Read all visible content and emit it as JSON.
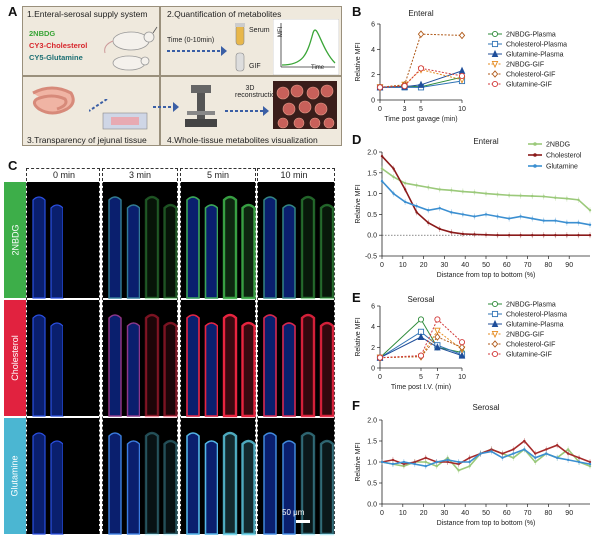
{
  "panels": {
    "A": "A",
    "B": "B",
    "C": "C",
    "D": "D",
    "E": "E",
    "F": "F"
  },
  "schematic": {
    "box1_title": "1.Enteral-serosal supply system",
    "box2_title": "2.Quantification of metabolites",
    "box3_title": "3.Transparency of jejunal tissue",
    "box4_title": "4.Whole-tissue metabolites visualization",
    "tracer_green": "2NBDG",
    "tracer_red": "CY3-Cholesterol",
    "tracer_cyan": "CY5-Glutamine",
    "time_label": "Time (0-10min)",
    "serum_label": "Serum",
    "gif_label": "GIF",
    "mfi_label": "MFI",
    "time_axis": "Time",
    "reconstruction_label": "3D\nreconstruction",
    "colors": {
      "green": "#3aa537",
      "red": "#d7262c",
      "cyan": "#1c6f73",
      "box": "#efe9dd"
    }
  },
  "micro": {
    "times": [
      "0 min",
      "3 min",
      "5 min",
      "10 min"
    ],
    "rows": [
      {
        "label": "2NBDG",
        "color": "#3dae49"
      },
      {
        "label": "Cholesterol",
        "color": "#e1223f"
      },
      {
        "label": "Glutamine",
        "color": "#4bb6d2"
      }
    ],
    "scale_bar": "50 μm"
  },
  "chart_data": [
    {
      "panel": "B",
      "type": "line",
      "title": "Enteral",
      "xlabel": "Time post gavage (min)",
      "ylabel": "Relative MFI",
      "x": [
        0,
        3,
        5,
        10
      ],
      "xticks": [
        "0",
        "3",
        "5",
        "10"
      ],
      "ylim": [
        0,
        6
      ],
      "yticks": [
        0,
        2,
        4,
        6
      ],
      "legend_position": "right",
      "series": [
        {
          "name": "2NBDG-Plasma",
          "values": [
            1.0,
            1.1,
            1.05,
            1.8
          ],
          "color": "#2e8b3a",
          "marker": "circle-open",
          "dash": false
        },
        {
          "name": "Cholesterol-Plasma",
          "values": [
            1.0,
            1.0,
            1.0,
            1.5
          ],
          "color": "#2f73b5",
          "marker": "square-open",
          "dash": false
        },
        {
          "name": "Glutamine-Plasma",
          "values": [
            1.0,
            1.05,
            1.2,
            2.3
          ],
          "color": "#1f4e9a",
          "marker": "triangle",
          "dash": false
        },
        {
          "name": "2NBDG-GIF",
          "values": [
            1.0,
            1.2,
            2.4,
            1.6
          ],
          "color": "#e58b1f",
          "marker": "triangle-down-open",
          "dash": true
        },
        {
          "name": "Cholesterol-GIF",
          "values": [
            1.0,
            1.2,
            5.2,
            5.1
          ],
          "color": "#b05a1a",
          "marker": "diamond-open",
          "dash": true
        },
        {
          "name": "Glutamine-GIF",
          "values": [
            1.0,
            1.1,
            2.5,
            1.9
          ],
          "color": "#d23a3a",
          "marker": "circle-open",
          "dash": true
        }
      ]
    },
    {
      "panel": "D",
      "type": "line",
      "title": "Enteral",
      "xlabel": "Distance from top to bottom (%)",
      "ylabel": "Relative MFI",
      "xlim": [
        0,
        100
      ],
      "xticks": [
        "0",
        "10",
        "20",
        "30",
        "40",
        "50",
        "60",
        "70",
        "80",
        "90"
      ],
      "ylim": [
        -0.5,
        2.0
      ],
      "yticks": [
        "-0.5",
        "0.0",
        "0.5",
        "1.0",
        "1.5",
        "2.0"
      ],
      "legend_position": "top-right",
      "series": [
        {
          "name": "2NBDG",
          "color": "#9bc97a",
          "values": [
            1.6,
            1.4,
            1.25,
            1.2,
            1.15,
            1.1,
            1.08,
            1.05,
            1.03,
            1.0,
            0.98,
            0.96,
            0.95,
            0.94,
            0.93,
            0.9,
            0.88,
            0.85,
            0.6
          ]
        },
        {
          "name": "Cholesterol",
          "color": "#8b1a1a",
          "values": [
            1.9,
            1.6,
            1.1,
            0.55,
            0.3,
            0.15,
            0.07,
            0.03,
            0.02,
            0.01,
            0.0,
            0.0,
            0.0,
            0.0,
            0.0,
            0.0,
            0.0,
            0.0,
            0.0
          ]
        },
        {
          "name": "Glutamine",
          "color": "#3b8fd1",
          "values": [
            1.3,
            1.0,
            0.8,
            0.7,
            0.6,
            0.65,
            0.55,
            0.5,
            0.45,
            0.5,
            0.45,
            0.4,
            0.45,
            0.4,
            0.35,
            0.35,
            0.3,
            0.3,
            0.25
          ]
        }
      ],
      "reference_line": 0
    },
    {
      "panel": "E",
      "type": "line",
      "title": "Serosal",
      "xlabel": "Time post I.V. (min)",
      "ylabel": "Relative MFI",
      "x": [
        0,
        5,
        7,
        10
      ],
      "xticks": [
        "0",
        "5",
        "7",
        "10"
      ],
      "ylim": [
        0,
        6
      ],
      "yticks": [
        0,
        2,
        4,
        6
      ],
      "legend_position": "right",
      "series": [
        {
          "name": "2NBDG-Plasma",
          "values": [
            1.0,
            4.7,
            2.0,
            1.5
          ],
          "color": "#2e8b3a",
          "marker": "circle-open",
          "dash": false
        },
        {
          "name": "Cholesterol-Plasma",
          "values": [
            1.0,
            3.5,
            2.2,
            1.3
          ],
          "color": "#2f73b5",
          "marker": "square-open",
          "dash": false
        },
        {
          "name": "Glutamine-Plasma",
          "values": [
            1.0,
            3.0,
            2.0,
            1.2
          ],
          "color": "#1f4e9a",
          "marker": "triangle",
          "dash": false
        },
        {
          "name": "2NBDG-GIF",
          "values": [
            1.0,
            1.1,
            3.6,
            1.8
          ],
          "color": "#e58b1f",
          "marker": "triangle-down-open",
          "dash": true
        },
        {
          "name": "Cholesterol-GIF",
          "values": [
            1.0,
            1.1,
            3.0,
            2.0
          ],
          "color": "#b05a1a",
          "marker": "diamond-open",
          "dash": true
        },
        {
          "name": "Glutamine-GIF",
          "values": [
            1.0,
            1.2,
            4.7,
            2.5
          ],
          "color": "#d23a3a",
          "marker": "circle-open",
          "dash": true
        }
      ]
    },
    {
      "panel": "F",
      "type": "line",
      "title": "Serosal",
      "xlabel": "Distance from top to bottom (%)",
      "ylabel": "Relative MFI",
      "xlim": [
        0,
        100
      ],
      "xticks": [
        "0",
        "10",
        "20",
        "30",
        "40",
        "50",
        "60",
        "70",
        "80",
        "90"
      ],
      "ylim": [
        0.0,
        2.0
      ],
      "yticks": [
        "0.0",
        "0.5",
        "1.0",
        "1.5",
        "2.0"
      ],
      "series": [
        {
          "name": "2NBDG",
          "color": "#9bc97a",
          "values": [
            1.0,
            0.95,
            0.9,
            1.0,
            1.0,
            0.9,
            1.1,
            0.8,
            0.9,
            1.2,
            1.3,
            1.2,
            1.1,
            1.3,
            1.0,
            1.2,
            1.1,
            1.3,
            1.0,
            0.9
          ]
        },
        {
          "name": "Cholesterol",
          "color": "#a52a2a",
          "values": [
            1.0,
            1.05,
            0.95,
            1.0,
            1.1,
            1.0,
            1.0,
            0.95,
            1.1,
            1.2,
            1.3,
            1.2,
            1.3,
            1.5,
            1.2,
            1.3,
            1.4,
            1.2,
            1.1,
            1.0
          ]
        },
        {
          "name": "Glutamine",
          "color": "#3b8fd1",
          "values": [
            1.0,
            0.95,
            1.0,
            0.95,
            0.9,
            1.0,
            1.05,
            1.0,
            1.0,
            1.2,
            1.25,
            1.1,
            1.2,
            1.3,
            1.1,
            1.2,
            1.1,
            1.05,
            1.0,
            0.95
          ]
        }
      ]
    }
  ]
}
